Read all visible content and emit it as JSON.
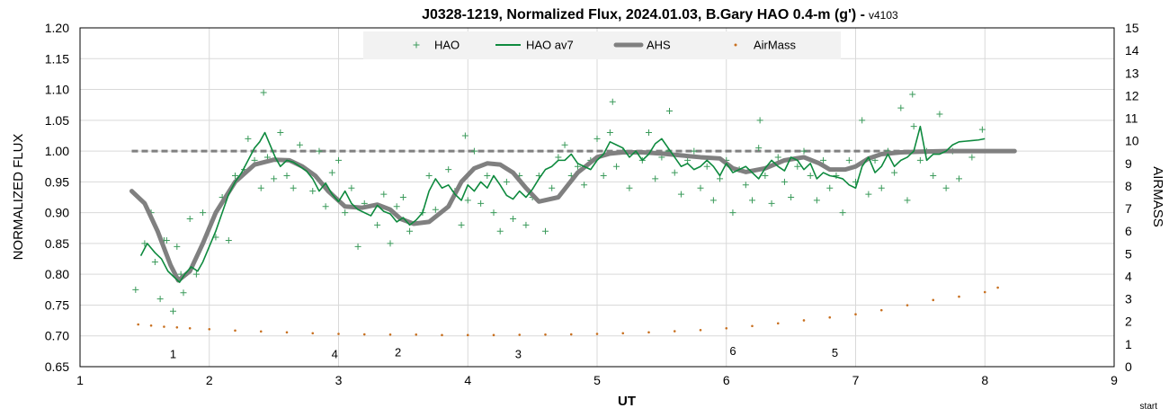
{
  "chart_data": {
    "type": "scatter",
    "title": "J0328-1219, Normalized Flux, 2024.01.03, B.Gary HAO 0.4-m (g')",
    "title_suffix": "- ",
    "version": "v4103",
    "xlabel": "UT",
    "ylabel": "NORMALIZED FLUX",
    "y2label": "AIRMASS",
    "xlim": [
      1,
      9
    ],
    "ylim": [
      0.65,
      1.2
    ],
    "y2lim": [
      0,
      15
    ],
    "x_ticks": [
      "1",
      "2",
      "3",
      "4",
      "5",
      "6",
      "7",
      "8",
      "9"
    ],
    "y_ticks": [
      "0.65",
      "0.70",
      "0.75",
      "0.80",
      "0.85",
      "0.90",
      "0.95",
      "1.00",
      "1.05",
      "1.10",
      "1.15",
      "1.20"
    ],
    "y2_ticks": [
      "0",
      "1",
      "2",
      "3",
      "4",
      "5",
      "6",
      "7",
      "8",
      "9",
      "10",
      "11",
      "12",
      "13",
      "14",
      "15"
    ],
    "grid": true,
    "legend_position": "top-center",
    "legend": [
      {
        "name": "HAO",
        "color": "#3a9a5a",
        "marker": "plus"
      },
      {
        "name": "HAO av7",
        "color": "#0e8a3e",
        "marker": "line"
      },
      {
        "name": "AHS",
        "color": "#808080",
        "marker": "thick-line"
      },
      {
        "name": "AirMass",
        "color": "#c87020",
        "marker": "dot"
      }
    ],
    "reference_line": {
      "y": 1.0,
      "style": "dashed",
      "color": "#808080",
      "x_range": [
        1.4,
        8.23
      ]
    },
    "annotations": [
      {
        "text": "1",
        "x": 1.72,
        "y": 0.664
      },
      {
        "text": "4",
        "x": 2.97,
        "y": 0.664
      },
      {
        "text": "2",
        "x": 3.46,
        "y": 0.667
      },
      {
        "text": "3",
        "x": 4.39,
        "y": 0.664
      },
      {
        "text": "6",
        "x": 6.05,
        "y": 0.669
      },
      {
        "text": "5",
        "x": 6.84,
        "y": 0.666
      }
    ],
    "start_label": "start",
    "series": [
      {
        "name": "AHS",
        "color": "#808080",
        "x": [
          1.4,
          1.5,
          1.6,
          1.7,
          1.76,
          1.85,
          1.95,
          2.05,
          2.2,
          2.35,
          2.5,
          2.62,
          2.72,
          2.82,
          2.92,
          3.05,
          3.18,
          3.3,
          3.4,
          3.48,
          3.58,
          3.7,
          3.85,
          3.95,
          4.05,
          4.15,
          4.25,
          4.35,
          4.45,
          4.55,
          4.7,
          4.85,
          5.0,
          5.1,
          5.2,
          5.35,
          5.5,
          5.65,
          5.8,
          5.95,
          6.05,
          6.15,
          6.3,
          6.45,
          6.6,
          6.72,
          6.8,
          6.92,
          7.0,
          7.1,
          7.2,
          7.35,
          7.5,
          7.7,
          7.9,
          8.1,
          8.23
        ],
        "y": [
          0.935,
          0.915,
          0.87,
          0.815,
          0.79,
          0.805,
          0.85,
          0.9,
          0.95,
          0.978,
          0.986,
          0.985,
          0.975,
          0.96,
          0.935,
          0.91,
          0.908,
          0.913,
          0.905,
          0.89,
          0.882,
          0.885,
          0.91,
          0.95,
          0.972,
          0.98,
          0.978,
          0.965,
          0.94,
          0.918,
          0.925,
          0.965,
          0.99,
          0.996,
          0.998,
          0.998,
          0.996,
          0.993,
          0.99,
          0.988,
          0.972,
          0.966,
          0.972,
          0.985,
          0.99,
          0.98,
          0.97,
          0.97,
          0.975,
          0.988,
          0.995,
          0.998,
          0.999,
          1.0,
          1.0,
          1.0,
          1.0
        ]
      },
      {
        "name": "HAO av7",
        "color": "#0e8a3e",
        "x": [
          1.47,
          1.52,
          1.58,
          1.63,
          1.68,
          1.73,
          1.77,
          1.81,
          1.86,
          1.91,
          1.95,
          2.0,
          2.05,
          2.1,
          2.15,
          2.2,
          2.25,
          2.3,
          2.35,
          2.39,
          2.43,
          2.47,
          2.51,
          2.55,
          2.6,
          2.65,
          2.7,
          2.75,
          2.8,
          2.85,
          2.9,
          2.95,
          3.0,
          3.05,
          3.1,
          3.15,
          3.2,
          3.25,
          3.3,
          3.35,
          3.4,
          3.45,
          3.5,
          3.55,
          3.6,
          3.65,
          3.7,
          3.75,
          3.8,
          3.85,
          3.9,
          3.95,
          4.0,
          4.05,
          4.1,
          4.15,
          4.2,
          4.25,
          4.3,
          4.35,
          4.4,
          4.45,
          4.5,
          4.55,
          4.6,
          4.65,
          4.7,
          4.75,
          4.8,
          4.85,
          4.9,
          4.95,
          5.0,
          5.05,
          5.1,
          5.15,
          5.2,
          5.25,
          5.3,
          5.35,
          5.4,
          5.45,
          5.5,
          5.55,
          5.6,
          5.65,
          5.7,
          5.75,
          5.8,
          5.85,
          5.9,
          5.95,
          6.0,
          6.05,
          6.1,
          6.15,
          6.2,
          6.25,
          6.3,
          6.35,
          6.4,
          6.45,
          6.5,
          6.55,
          6.6,
          6.65,
          6.7,
          6.75,
          6.8,
          6.85,
          6.9,
          6.95,
          7.0,
          7.05,
          7.1,
          7.15,
          7.2,
          7.25,
          7.3,
          7.35,
          7.4,
          7.45,
          7.5,
          7.55,
          7.6,
          7.65,
          7.7,
          7.75,
          7.8,
          7.85,
          7.9,
          7.95,
          8.0
        ],
        "y": [
          0.83,
          0.85,
          0.835,
          0.825,
          0.805,
          0.795,
          0.787,
          0.8,
          0.812,
          0.805,
          0.82,
          0.845,
          0.87,
          0.9,
          0.93,
          0.95,
          0.965,
          0.985,
          1.005,
          1.015,
          1.03,
          1.01,
          0.99,
          0.975,
          0.985,
          0.982,
          0.975,
          0.968,
          0.955,
          0.935,
          0.948,
          0.93,
          0.918,
          0.935,
          0.915,
          0.905,
          0.9,
          0.895,
          0.912,
          0.902,
          0.898,
          0.885,
          0.892,
          0.88,
          0.888,
          0.9,
          0.935,
          0.955,
          0.94,
          0.945,
          0.93,
          0.92,
          0.945,
          0.935,
          0.95,
          0.94,
          0.96,
          0.945,
          0.928,
          0.922,
          0.935,
          0.925,
          0.938,
          0.955,
          0.97,
          0.975,
          0.985,
          0.985,
          0.995,
          0.98,
          0.975,
          0.97,
          0.985,
          0.995,
          1.015,
          1.01,
          1.005,
          0.99,
          1.0,
          0.985,
          0.995,
          1.012,
          1.02,
          1.005,
          0.99,
          0.975,
          0.98,
          0.97,
          0.975,
          0.985,
          0.975,
          0.96,
          0.98,
          0.965,
          0.97,
          0.975,
          0.965,
          0.955,
          0.972,
          0.985,
          0.975,
          0.968,
          0.99,
          0.985,
          0.97,
          0.98,
          0.955,
          0.965,
          0.96,
          0.958,
          0.955,
          0.945,
          0.94,
          0.975,
          0.99,
          0.965,
          0.975,
          0.995,
          0.975,
          0.985,
          0.99,
          1.0,
          1.04,
          0.985,
          0.995,
          0.995,
          1.0,
          1.01,
          1.015,
          1.016,
          1.017,
          1.018,
          1.02
        ]
      },
      {
        "name": "AirMass",
        "color": "#c87020",
        "axis": "right",
        "x": [
          1.45,
          1.55,
          1.65,
          1.75,
          1.85,
          2.0,
          2.2,
          2.4,
          2.6,
          2.8,
          3.0,
          3.2,
          3.4,
          3.6,
          3.8,
          4.0,
          4.2,
          4.4,
          4.6,
          4.8,
          5.0,
          5.2,
          5.4,
          5.6,
          5.8,
          6.0,
          6.2,
          6.4,
          6.6,
          6.8,
          7.0,
          7.2,
          7.4,
          7.6,
          7.8,
          8.0,
          8.1
        ],
        "y": [
          1.87,
          1.82,
          1.77,
          1.74,
          1.7,
          1.66,
          1.6,
          1.56,
          1.52,
          1.48,
          1.45,
          1.43,
          1.42,
          1.42,
          1.4,
          1.4,
          1.4,
          1.41,
          1.42,
          1.43,
          1.45,
          1.48,
          1.52,
          1.57,
          1.62,
          1.7,
          1.8,
          1.92,
          2.05,
          2.18,
          2.32,
          2.5,
          2.72,
          2.95,
          3.1,
          3.3,
          3.5
        ]
      },
      {
        "name": "HAO",
        "color": "#3a9a5a",
        "x": [
          1.5,
          1.55,
          1.62,
          1.65,
          1.72,
          1.75,
          1.8,
          1.85,
          1.9,
          1.95,
          2.05,
          2.1,
          2.15,
          2.2,
          2.27,
          2.3,
          2.35,
          2.4,
          2.45,
          2.5,
          2.55,
          2.6,
          2.65,
          2.7,
          2.8,
          2.85,
          2.9,
          2.95,
          3.0,
          3.05,
          3.1,
          3.15,
          3.2,
          3.3,
          3.35,
          3.4,
          3.45,
          3.5,
          3.55,
          3.65,
          3.7,
          3.75,
          3.85,
          3.9,
          3.95,
          4.0,
          4.05,
          4.1,
          4.15,
          4.2,
          4.25,
          4.3,
          4.35,
          4.4,
          4.45,
          4.5,
          4.55,
          4.6,
          4.65,
          4.7,
          4.75,
          4.8,
          4.85,
          4.9,
          4.95,
          5.0,
          5.05,
          5.1,
          5.15,
          5.2,
          5.25,
          5.35,
          5.4,
          5.45,
          5.5,
          5.55,
          5.6,
          5.65,
          5.7,
          5.75,
          5.8,
          5.85,
          5.9,
          5.95,
          6.0,
          6.05,
          6.1,
          6.15,
          6.2,
          6.25,
          6.3,
          6.35,
          6.4,
          6.45,
          6.5,
          6.55,
          6.6,
          6.65,
          6.7,
          6.75,
          6.8,
          6.85,
          6.9,
          6.95,
          7.0,
          7.05,
          7.1,
          7.15,
          7.2,
          7.25,
          7.3,
          7.35,
          7.4,
          7.45,
          7.5,
          7.55,
          7.6,
          7.65,
          7.7,
          7.75,
          7.8,
          7.9,
          7.98,
          1.43,
          1.58,
          1.67,
          1.78,
          2.42,
          3.98,
          5.12,
          5.56,
          6.26,
          7.44
        ],
        "y": [
          0.85,
          0.9,
          0.76,
          0.855,
          0.74,
          0.845,
          0.77,
          0.89,
          0.8,
          0.9,
          0.86,
          0.925,
          0.855,
          0.96,
          0.97,
          1.02,
          0.985,
          0.94,
          0.99,
          0.955,
          1.03,
          0.96,
          0.94,
          1.01,
          0.935,
          1.0,
          0.91,
          0.965,
          0.985,
          0.9,
          0.94,
          0.845,
          0.915,
          0.88,
          0.93,
          0.85,
          0.91,
          0.925,
          0.87,
          0.9,
          0.96,
          0.905,
          0.97,
          0.935,
          0.88,
          0.92,
          1.0,
          0.915,
          0.96,
          0.9,
          0.87,
          0.95,
          0.89,
          0.96,
          0.88,
          0.925,
          0.96,
          0.87,
          0.94,
          0.99,
          1.01,
          0.96,
          0.975,
          0.945,
          0.985,
          1.02,
          0.96,
          1.03,
          0.975,
          1.0,
          0.94,
          0.985,
          1.03,
          0.955,
          0.99,
          1.0,
          0.965,
          0.93,
          0.985,
          1.0,
          0.94,
          0.975,
          0.92,
          0.955,
          0.985,
          0.9,
          0.97,
          0.945,
          0.92,
          1.005,
          0.96,
          0.915,
          0.99,
          0.95,
          0.925,
          0.975,
          1.0,
          0.96,
          0.92,
          0.985,
          0.94,
          0.96,
          0.9,
          0.985,
          0.95,
          1.05,
          0.93,
          0.985,
          0.94,
          1.0,
          0.965,
          1.07,
          0.92,
          1.04,
          0.985,
          1.0,
          0.96,
          1.06,
          0.94,
          1.0,
          0.955,
          0.99,
          1.035,
          0.775,
          0.82,
          0.855,
          0.8,
          1.095,
          1.025,
          1.08,
          1.065,
          1.05,
          1.092
        ]
      }
    ]
  }
}
